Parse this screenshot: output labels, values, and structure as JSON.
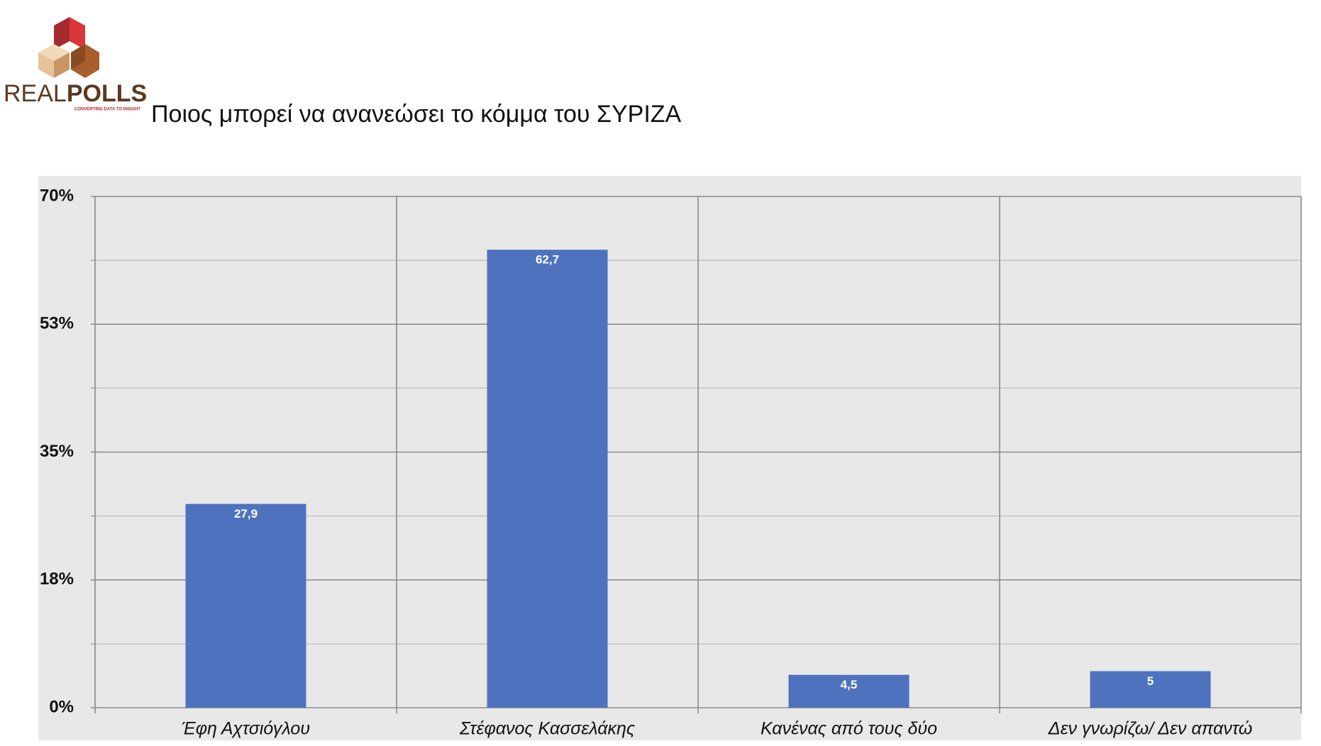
{
  "logo": {
    "text_light": "REAL",
    "text_bold": "POLLS",
    "tagline": "CONVERTING DATA TO INSIGHT"
  },
  "chart_data": {
    "type": "bar",
    "title": "Ποιος μπορεί να ανανεώσει το κόμμα του ΣΥΡΙΖΑ",
    "categories": [
      "Έφη Αχτσιόγλου",
      "Στέφανος Κασσελάκης",
      "Κανένας από τους δύο",
      "Δεν γνωρίζω/  Δεν απαντώ"
    ],
    "values": [
      27.9,
      62.7,
      4.5,
      5
    ],
    "value_labels": [
      "27,9",
      "62,7",
      "4,5",
      "5"
    ],
    "color": "#4e72be",
    "ylim": [
      0,
      70
    ],
    "yticks": [
      {
        "value": 0,
        "label": "0%"
      },
      {
        "value": 17.5,
        "label": "18%"
      },
      {
        "value": 35,
        "label": "35%"
      },
      {
        "value": 52.5,
        "label": "53%"
      },
      {
        "value": 70,
        "label": "70%"
      }
    ],
    "yminorticks": [
      8.75,
      26.25,
      43.75,
      61.25
    ],
    "grid": true
  }
}
